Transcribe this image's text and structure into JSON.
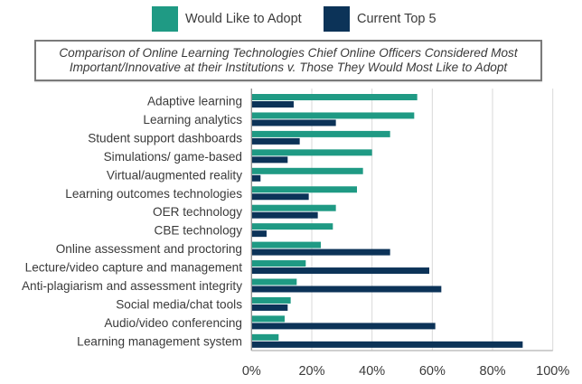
{
  "legend": {
    "items": [
      {
        "label": "Would Like to Adopt",
        "color": "#1f9a84"
      },
      {
        "label": "Current Top 5",
        "color": "#0c3358"
      }
    ]
  },
  "title": {
    "line1": "Comparison of Online Learning Technologies Chief Online Officers Considered Most",
    "line2": "Important/Innovative at their Institutions v. Those They Would Most Like to Adopt"
  },
  "chart_data": {
    "type": "bar",
    "orientation": "horizontal",
    "title": "Comparison of Online Learning Technologies Chief Online Officers Considered Most Important/Innovative at their Institutions v. Those They Would Most Like to Adopt",
    "xlabel": "",
    "ylabel": "",
    "categories": [
      "Adaptive learning",
      "Learning analytics",
      "Student support dashboards",
      "Simulations/ game-based",
      "Virtual/augmented reality",
      "Learning outcomes technologies",
      "OER technology",
      "CBE technology",
      "Online assessment and proctoring",
      "Lecture/video capture and management",
      "Anti-plagiarism and assessment integrity",
      "Social media/chat tools",
      "Audio/video conferencing",
      "Learning management system"
    ],
    "series": [
      {
        "name": "Would Like to Adopt",
        "color": "#1f9a84",
        "values": [
          55,
          54,
          46,
          40,
          37,
          35,
          28,
          27,
          23,
          18,
          15,
          13,
          11,
          9
        ]
      },
      {
        "name": "Current Top 5",
        "color": "#0c3358",
        "values": [
          14,
          28,
          16,
          12,
          3,
          19,
          22,
          5,
          46,
          59,
          63,
          12,
          61,
          90
        ]
      }
    ],
    "xlim": [
      0,
      100
    ],
    "xticks": [
      "0%",
      "20%",
      "40%",
      "60%",
      "80%",
      "100%"
    ],
    "xtick_values": [
      0,
      20,
      40,
      60,
      80,
      100
    ],
    "grid": true,
    "legend_position": "top"
  }
}
